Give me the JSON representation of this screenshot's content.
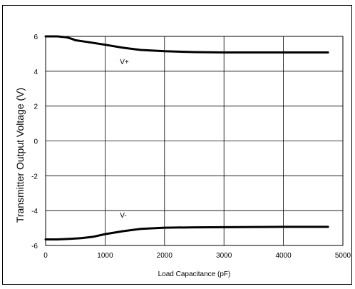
{
  "chart_data": {
    "type": "line",
    "title": "",
    "xlabel": "Load Capacitance (pF)",
    "ylabel": "Transmitter Output Voltage (V)",
    "xlim": [
      0,
      5000
    ],
    "ylim": [
      -6,
      6
    ],
    "xticks": [
      "0",
      "1000",
      "2000",
      "3000",
      "4000",
      "5000"
    ],
    "yticks": [
      "6",
      "4",
      "2",
      "0",
      "-2",
      "-4",
      "-6"
    ],
    "grid": true,
    "legend": "none",
    "series": [
      {
        "name": "V+",
        "x": [
          0,
          200,
          350,
          450,
          500,
          700,
          1000,
          1300,
          1600,
          2000,
          2500,
          3000,
          4000,
          4750
        ],
        "y": [
          6.0,
          6.0,
          5.95,
          5.85,
          5.78,
          5.68,
          5.52,
          5.35,
          5.22,
          5.15,
          5.1,
          5.08,
          5.08,
          5.08
        ],
        "color": "#000000"
      },
      {
        "name": "V-",
        "x": [
          0,
          200,
          400,
          600,
          800,
          1000,
          1300,
          1600,
          2000,
          2500,
          3000,
          4000,
          4750
        ],
        "y": [
          -5.65,
          -5.65,
          -5.62,
          -5.58,
          -5.5,
          -5.35,
          -5.18,
          -5.05,
          -4.98,
          -4.96,
          -4.95,
          -4.93,
          -4.93
        ],
        "color": "#000000"
      }
    ],
    "series_labels": [
      {
        "text": "V+",
        "x": 1250,
        "y": 4.4
      },
      {
        "text": "V-",
        "x": 1250,
        "y": -4.4
      }
    ]
  }
}
